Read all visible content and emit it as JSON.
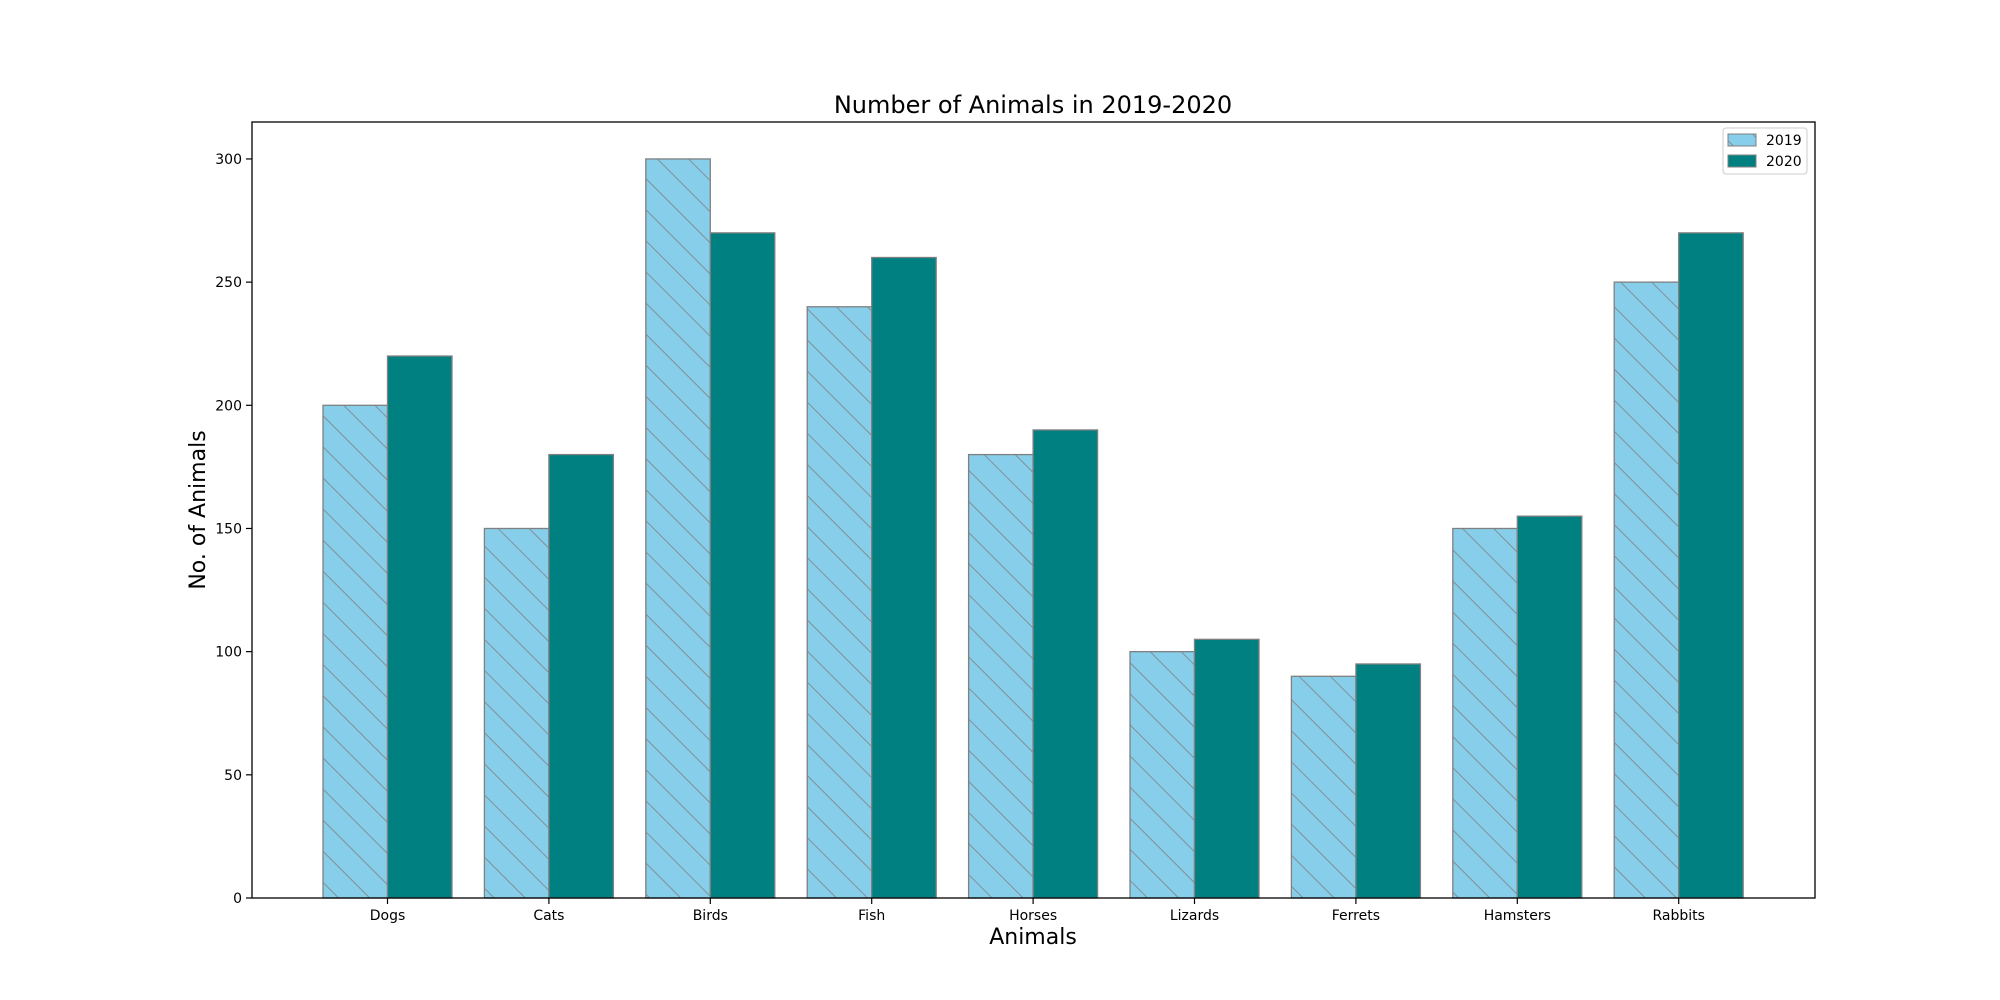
{
  "chart_data": {
    "type": "bar",
    "title": "Number of Animals in 2019-2020",
    "xlabel": "Animals",
    "ylabel": "No. of Animals",
    "categories": [
      "Dogs",
      "Cats",
      "Birds",
      "Fish",
      "Horses",
      "Lizards",
      "Ferrets",
      "Hamsters",
      "Rabbits"
    ],
    "series": [
      {
        "name": "2019",
        "values": [
          200,
          150,
          300,
          240,
          180,
          100,
          90,
          150,
          250
        ],
        "color": "#87ceeb",
        "edge_color": "#808080",
        "hatch": "diagonal-backslash"
      },
      {
        "name": "2020",
        "values": [
          220,
          180,
          270,
          260,
          190,
          105,
          95,
          155,
          270
        ],
        "color": "#008080",
        "edge_color": "#808080",
        "hatch": "none"
      }
    ],
    "ylim": [
      0,
      315
    ],
    "yticks": [
      0,
      50,
      100,
      150,
      200,
      250,
      300
    ],
    "grid": false,
    "legend_position": "top-right"
  }
}
